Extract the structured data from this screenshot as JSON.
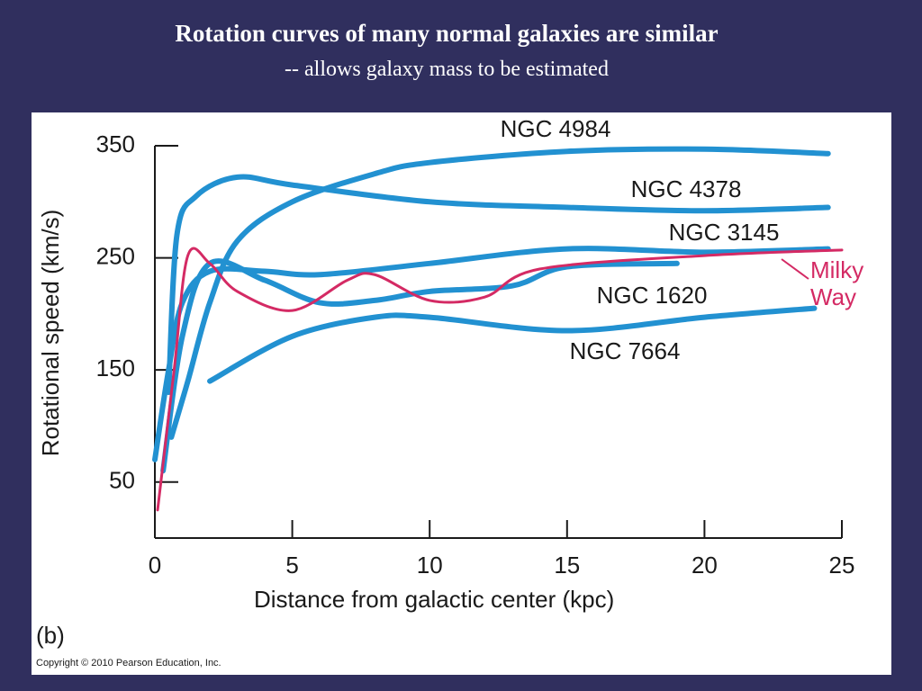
{
  "title": "Rotation curves of many normal galaxies are similar",
  "subtitle": "-- allows galaxy mass to be estimated",
  "chart_data": {
    "type": "line",
    "x_label": "Distance from galactic center (kpc)",
    "y_label": "Rotational speed (km/s)",
    "panel_label": "(b)",
    "copyright": "Copyright © 2010 Pearson Education, Inc.",
    "xlim": [
      0,
      25
    ],
    "ylim": [
      0,
      350
    ],
    "xticks": [
      0,
      5,
      10,
      15,
      20,
      25
    ],
    "yticks": [
      50,
      150,
      250,
      350
    ],
    "series": [
      {
        "name": "NGC 4984",
        "color": "#2291d1",
        "x": [
          0.6,
          1.2,
          2,
          3,
          5,
          8,
          10,
          15,
          20,
          24.5
        ],
        "values": [
          90,
          140,
          210,
          265,
          300,
          325,
          335,
          345,
          347,
          343
        ]
      },
      {
        "name": "NGC 4378",
        "color": "#2291d1",
        "x": [
          0.5,
          0.8,
          1.5,
          3,
          5,
          10,
          15,
          20,
          24.5
        ],
        "values": [
          130,
          270,
          305,
          322,
          315,
          300,
          295,
          292,
          295
        ]
      },
      {
        "name": "NGC 3145",
        "color": "#2291d1",
        "x": [
          0,
          0.5,
          1,
          2,
          4,
          6,
          10,
          15,
          20,
          24.5
        ],
        "values": [
          70,
          150,
          210,
          238,
          238,
          235,
          245,
          258,
          255,
          258
        ]
      },
      {
        "name": "NGC 1620",
        "color": "#2291d1",
        "x": [
          0.3,
          1,
          2,
          4,
          6,
          8,
          10,
          13,
          15,
          19
        ],
        "values": [
          60,
          180,
          245,
          230,
          210,
          212,
          220,
          225,
          242,
          245
        ]
      },
      {
        "name": "NGC 7664",
        "color": "#2291d1",
        "x": [
          2,
          5,
          8,
          10,
          15,
          20,
          24
        ],
        "values": [
          140,
          180,
          197,
          197,
          185,
          197,
          205
        ]
      },
      {
        "name": "Milky Way",
        "color": "#d42a64",
        "x": [
          0.1,
          0.7,
          1.2,
          2,
          3,
          5,
          7,
          8,
          10,
          12,
          14,
          20,
          25
        ],
        "values": [
          25,
          150,
          252,
          245,
          220,
          203,
          230,
          235,
          212,
          215,
          240,
          252,
          257
        ]
      }
    ]
  }
}
